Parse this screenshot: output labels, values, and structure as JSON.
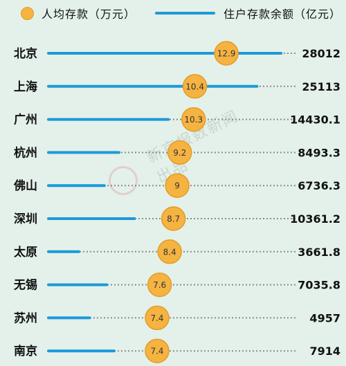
{
  "legend": {
    "dot_label": "人均存款（万元）",
    "line_label": "住户存款余额（亿元）"
  },
  "watermark": {
    "text": "新京报数新闻出品"
  },
  "colors": {
    "background": "#e3f1ea",
    "bar": "#1b9ad9",
    "dot": "#f5b342",
    "dot_border": "#e39c23",
    "dotted_line": "#8a8a8a"
  },
  "chart_data": {
    "type": "lollipop",
    "categories": [
      "北京",
      "上海",
      "广州",
      "杭州",
      "佛山",
      "深圳",
      "太原",
      "无锡",
      "苏州",
      "南京"
    ],
    "series": [
      {
        "name": "人均存款（万元）",
        "values": [
          12.9,
          10.4,
          10.3,
          9.2,
          9,
          8.7,
          8.4,
          7.6,
          7.4,
          7.4
        ],
        "value_labels": [
          "12.9",
          "10.4",
          "10.3",
          "9.2",
          "9",
          "8.7",
          "8.4",
          "7.6",
          "7.4",
          "7.4"
        ]
      },
      {
        "name": "住户存款余额（亿元）",
        "values": [
          28012,
          25113,
          14430.1,
          8493.3,
          6736.3,
          10361.2,
          3661.8,
          7035.8,
          4957,
          7914
        ],
        "value_labels": [
          "28012",
          "25113",
          "14430.1",
          "8493.3",
          "6736.3",
          "10361.2",
          "3661.8",
          "7035.8",
          "4957",
          "7914"
        ]
      }
    ],
    "grid": false,
    "legend_position": "top"
  }
}
